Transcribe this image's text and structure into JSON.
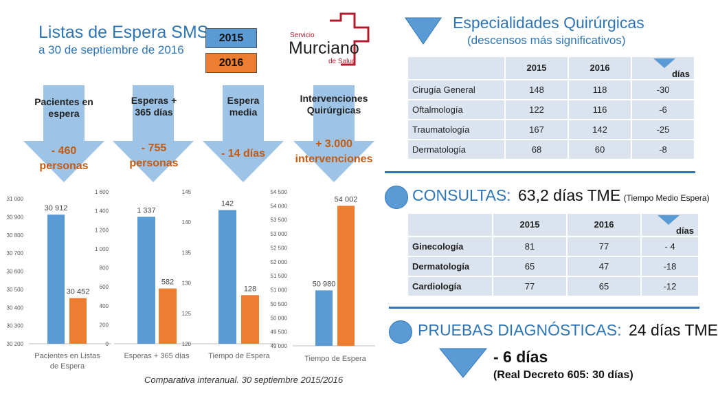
{
  "header": {
    "title": "Listas de Espera SMS",
    "subtitle": "a 30 de septiembre de 2016"
  },
  "legend": [
    {
      "label": "2015",
      "color": "#5b9bd5"
    },
    {
      "label": "2016",
      "color": "#ed7d31"
    }
  ],
  "logo": {
    "line1": "Servicio",
    "line2": "Murciano",
    "line3": "de Salud",
    "color": "#b01c2e"
  },
  "arrows": [
    {
      "label": "Pacientes en espera",
      "value": "- 460 personas"
    },
    {
      "label": "Esperas + 365 días",
      "value": "- 755 personas"
    },
    {
      "label": "Espera media",
      "value": "- 14 días"
    },
    {
      "label": "Intervenciones Quirúrgicas",
      "value": "+ 3.000 intervenciones"
    }
  ],
  "chart_data": [
    {
      "type": "bar",
      "xlabel": "Pacientes en Listas de Espera",
      "ylim": [
        30200,
        31000
      ],
      "yticks": [
        "30 200",
        "30 300",
        "30 400",
        "30 500",
        "30 600",
        "30 700",
        "30 800",
        "30 900",
        "31 000"
      ],
      "series": [
        {
          "name": "2015",
          "values": [
            30912
          ],
          "label": "30 912"
        },
        {
          "name": "2016",
          "values": [
            30452
          ],
          "label": "30 452"
        }
      ]
    },
    {
      "type": "bar",
      "xlabel": "Esperas + 365 días",
      "ylim": [
        0,
        1600
      ],
      "yticks": [
        "0",
        "200",
        "400",
        "600",
        "800",
        "1 000",
        "1 200",
        "1 400",
        "1 600"
      ],
      "series": [
        {
          "name": "2015",
          "values": [
            1337
          ],
          "label": "1 337"
        },
        {
          "name": "2016",
          "values": [
            582
          ],
          "label": "582"
        }
      ]
    },
    {
      "type": "bar",
      "xlabel": "Tiempo de Espera",
      "ylim": [
        120,
        145
      ],
      "yticks": [
        "120",
        "125",
        "130",
        "135",
        "140",
        "145"
      ],
      "series": [
        {
          "name": "2015",
          "values": [
            142
          ],
          "label": "142"
        },
        {
          "name": "2016",
          "values": [
            128
          ],
          "label": "128"
        }
      ]
    },
    {
      "type": "bar",
      "xlabel": "Tiempo de Espera",
      "ylim": [
        49000,
        54500
      ],
      "yticks": [
        "49 000",
        "49 500",
        "50 000",
        "50 500",
        "51 000",
        "51 500",
        "52 000",
        "52 500",
        "53 000",
        "53 500",
        "54 000",
        "54 500"
      ],
      "series": [
        {
          "name": "2015",
          "values": [
            50980
          ],
          "label": "50 980"
        },
        {
          "name": "2016",
          "values": [
            54002
          ],
          "label": "54 002"
        }
      ]
    }
  ],
  "footer": "Comparativa interanual. 30 septiembre 2015/2016",
  "quirurgicas": {
    "title": "Especialidades Quirúrgicas",
    "subtitle": "(descensos más significativos)",
    "headers": [
      "",
      "2015",
      "2016",
      "días"
    ],
    "rows": [
      [
        "Cirugía General",
        "148",
        "118",
        "-30"
      ],
      [
        "Oftalmología",
        "122",
        "116",
        "-6"
      ],
      [
        "Traumatología",
        "167",
        "142",
        "-25"
      ],
      [
        "Dermatología",
        "68",
        "60",
        "-8"
      ]
    ]
  },
  "consultas": {
    "label": "CONSULTAS:",
    "value": "63,2 días TME",
    "note": "(Tiempo Medio Espera)",
    "headers": [
      "",
      "2015",
      "2016",
      "días"
    ],
    "rows": [
      [
        "Ginecología",
        "81",
        "77",
        "- 4"
      ],
      [
        "Dermatología",
        "65",
        "47",
        "-18"
      ],
      [
        "Cardiología",
        "77",
        "65",
        "-12"
      ]
    ]
  },
  "pruebas": {
    "label": "PRUEBAS DIAGNÓSTICAS:",
    "value": "24 días TME",
    "delta": "- 6 días",
    "decree": "(Real Decreto 605: 30 días)"
  }
}
